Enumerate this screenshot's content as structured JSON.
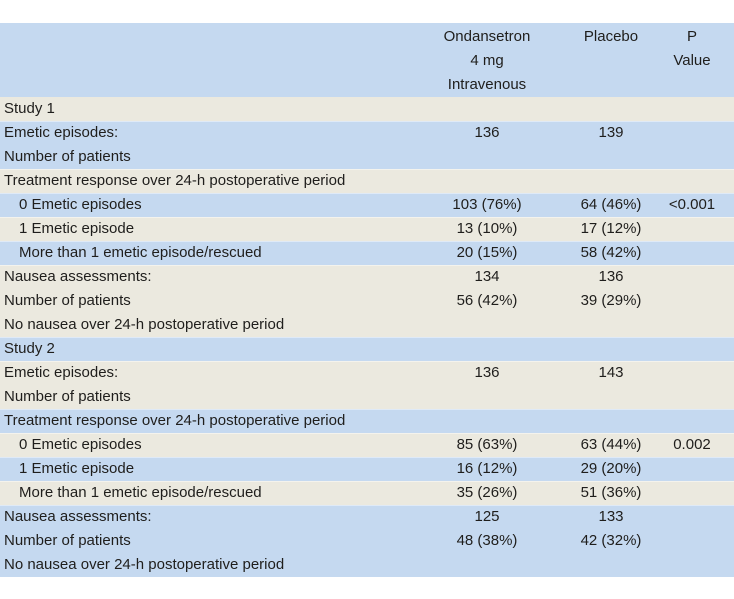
{
  "page": {
    "background": "#ffffff"
  },
  "colors": {
    "band_blue": "#c5d9f0",
    "band_beige": "#ebe9df",
    "text": "#1f1e1c"
  },
  "table": {
    "header": {
      "drug_lines": [
        "Ondansetron",
        "4 mg",
        "Intravenous"
      ],
      "placebo": "Placebo",
      "p_value": "P Value"
    },
    "bands": [
      {
        "bg": "beige",
        "lines": [
          {
            "label": "Study 1"
          }
        ]
      },
      {
        "bg": "blue",
        "lines": [
          {
            "label": "Emetic episodes:",
            "c2": "136",
            "c3": "139"
          },
          {
            "label": "Number of patients"
          }
        ]
      },
      {
        "bg": "beige",
        "lines": [
          {
            "label": "Treatment response over 24-h postoperative period"
          }
        ]
      },
      {
        "bg": "blue",
        "lines": [
          {
            "label": "0 Emetic episodes",
            "indent": true,
            "c2": "103 (76%)",
            "c3": "64 (46%)",
            "c4": "<0.001"
          }
        ]
      },
      {
        "bg": "beige",
        "lines": [
          {
            "label": "1 Emetic episode",
            "indent": true,
            "c2": "13 (10%)",
            "c3": "17 (12%)"
          }
        ]
      },
      {
        "bg": "blue",
        "lines": [
          {
            "label": "More than 1 emetic episode/rescued",
            "indent": true,
            "c2": "20 (15%)",
            "c3": "58 (42%)"
          }
        ]
      },
      {
        "bg": "beige",
        "lines": [
          {
            "label": "Nausea assessments:",
            "c2": "134",
            "c3": "136"
          },
          {
            "label": "Number of patients",
            "c2": "56 (42%)",
            "c3": "39 (29%)"
          },
          {
            "label": "No nausea over 24-h postoperative period"
          }
        ]
      },
      {
        "bg": "blue",
        "lines": [
          {
            "label": "Study 2"
          }
        ]
      },
      {
        "bg": "beige",
        "lines": [
          {
            "label": "Emetic episodes:",
            "c2": "136",
            "c3": "143"
          },
          {
            "label": "Number of patients"
          }
        ]
      },
      {
        "bg": "blue",
        "lines": [
          {
            "label": "Treatment response over 24-h postoperative period"
          }
        ]
      },
      {
        "bg": "beige",
        "lines": [
          {
            "label": "0 Emetic episodes",
            "indent": true,
            "c2": "85 (63%)",
            "c3": "63 (44%)",
            "c4": "0.002"
          }
        ]
      },
      {
        "bg": "blue",
        "lines": [
          {
            "label": "1 Emetic episode",
            "indent": true,
            "c2": "16 (12%)",
            "c3": "29 (20%)"
          }
        ]
      },
      {
        "bg": "beige",
        "lines": [
          {
            "label": "More than 1 emetic episode/rescued",
            "indent": true,
            "c2": "35 (26%)",
            "c3": "51 (36%)"
          }
        ]
      },
      {
        "bg": "blue",
        "lines": [
          {
            "label": "Nausea assessments:",
            "c2": "125",
            "c3": "133"
          },
          {
            "label": "Number of patients",
            "c2": "48 (38%)",
            "c3": "42 (32%)"
          },
          {
            "label": "No nausea over 24-h postoperative period"
          }
        ]
      }
    ]
  }
}
